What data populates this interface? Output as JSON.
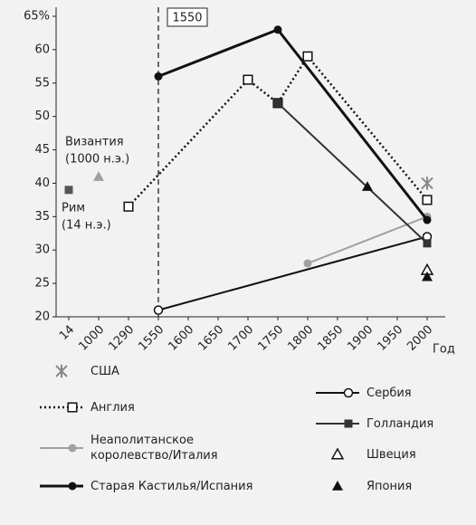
{
  "chart_data": {
    "type": "line",
    "categories": [
      "14",
      "1000",
      "1290",
      "1550",
      "1600",
      "1650",
      "1700",
      "1750",
      "1800",
      "1850",
      "1900",
      "1950",
      "2000"
    ],
    "x_label": "Год",
    "ylim": [
      20,
      65
    ],
    "yticks": [
      20,
      25,
      30,
      35,
      40,
      45,
      50,
      55,
      60,
      {
        "value": 65,
        "label": "65%"
      }
    ],
    "reference_line": {
      "x": "1550",
      "label": "1550"
    },
    "annotations": [
      {
        "lines": [
          "Византия",
          "(1000 н.э.)"
        ],
        "x": "1000",
        "value": 41,
        "marker": "triangle",
        "color": "#a0a0a0"
      },
      {
        "lines": [
          "Рим",
          "(14 н.э.)"
        ],
        "x": "14",
        "value": 39,
        "marker": "square",
        "color": "#555555"
      }
    ],
    "series": [
      {
        "name": "США",
        "color": "#888888",
        "line": "none",
        "marker": "asterisk",
        "x": [
          "2000"
        ],
        "values": [
          40
        ]
      },
      {
        "name": "Англия",
        "color": "#111111",
        "line": "dotted",
        "marker": "square-open",
        "x": [
          "1290",
          "1700",
          "1750",
          "1800",
          "2000"
        ],
        "values": [
          36.5,
          55.5,
          52,
          59,
          37.5
        ]
      },
      {
        "name": "Неаполитанское королевство/Италия",
        "color": "#a0a0a0",
        "line": "solid",
        "marker": "circle",
        "x": [
          "1800",
          "2000"
        ],
        "values": [
          28,
          35
        ]
      },
      {
        "name": "Старая Кастилья/Испания",
        "color": "#111111",
        "line": "thick",
        "marker": "circle",
        "x": [
          "1550",
          "1750",
          "2000"
        ],
        "values": [
          56,
          63,
          34.5
        ]
      },
      {
        "name": "Сербия",
        "color": "#111111",
        "line": "solid",
        "marker": "circle-open",
        "x": [
          "1550",
          "2000"
        ],
        "values": [
          21,
          32
        ]
      },
      {
        "name": "Голландия",
        "color": "#333333",
        "line": "solid",
        "marker": "square",
        "x": [
          "1750",
          "2000"
        ],
        "values": [
          52,
          31
        ]
      },
      {
        "name": "Швеция",
        "color": "#111111",
        "line": "none",
        "marker": "triangle-open",
        "x": [
          "2000"
        ],
        "values": [
          27
        ]
      },
      {
        "name": "Япония",
        "color": "#111111",
        "line": "none",
        "marker": "triangle",
        "x": [
          "1900",
          "2000"
        ],
        "values": [
          39.5,
          26
        ]
      }
    ]
  }
}
